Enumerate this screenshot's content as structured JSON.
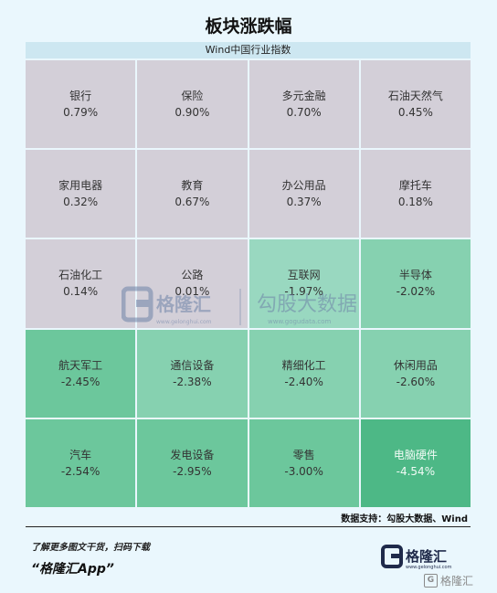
{
  "title": "板块涨跌幅",
  "subtitle": "Wind中国行业指数",
  "colors": {
    "up": "#d3cfd8",
    "down_light": "#99d8c0",
    "down_mid": "#86d1b0",
    "down_strong": "#6cc79c",
    "down_max": "#4db886"
  },
  "cells": [
    {
      "name": "银行",
      "value": "0.79%",
      "tone": "up"
    },
    {
      "name": "保险",
      "value": "0.90%",
      "tone": "up"
    },
    {
      "name": "多元金融",
      "value": "0.70%",
      "tone": "up"
    },
    {
      "name": "石油天然气",
      "value": "0.45%",
      "tone": "up"
    },
    {
      "name": "家用电器",
      "value": "0.32%",
      "tone": "up"
    },
    {
      "name": "教育",
      "value": "0.67%",
      "tone": "up"
    },
    {
      "name": "办公用品",
      "value": "0.37%",
      "tone": "up"
    },
    {
      "name": "摩托车",
      "value": "0.18%",
      "tone": "up"
    },
    {
      "name": "石油化工",
      "value": "0.14%",
      "tone": "up"
    },
    {
      "name": "公路",
      "value": "0.01%",
      "tone": "up"
    },
    {
      "name": "互联网",
      "value": "-1.97%",
      "tone": "dn1"
    },
    {
      "name": "半导体",
      "value": "-2.02%",
      "tone": "dn2"
    },
    {
      "name": "航天军工",
      "value": "-2.45%",
      "tone": "dn3"
    },
    {
      "name": "通信设备",
      "value": "-2.38%",
      "tone": "dn2"
    },
    {
      "name": "精细化工",
      "value": "-2.40%",
      "tone": "dn2"
    },
    {
      "name": "休闲用品",
      "value": "-2.60%",
      "tone": "dn2"
    },
    {
      "name": "汽车",
      "value": "-2.54%",
      "tone": "dn3"
    },
    {
      "name": "发电设备",
      "value": "-2.95%",
      "tone": "dn3"
    },
    {
      "name": "零售",
      "value": "-3.00%",
      "tone": "dn3"
    },
    {
      "name": "电脑硬件",
      "value": "-4.54%",
      "tone": "dn4"
    }
  ],
  "source": "数据支持：勾股大数据、Wind",
  "footer": {
    "note": "了解更多图文干货，扫码下载",
    "app": "“格隆汇App”"
  },
  "watermark": {
    "brand": "格隆汇",
    "brand_url": "www.gelonghui.com",
    "partner": "勾股大数据",
    "partner_url": "www.gogudata.com"
  },
  "logo": {
    "text": "格隆汇",
    "url": "www.gelonghui.com"
  },
  "corner_mark": "格隆汇"
}
